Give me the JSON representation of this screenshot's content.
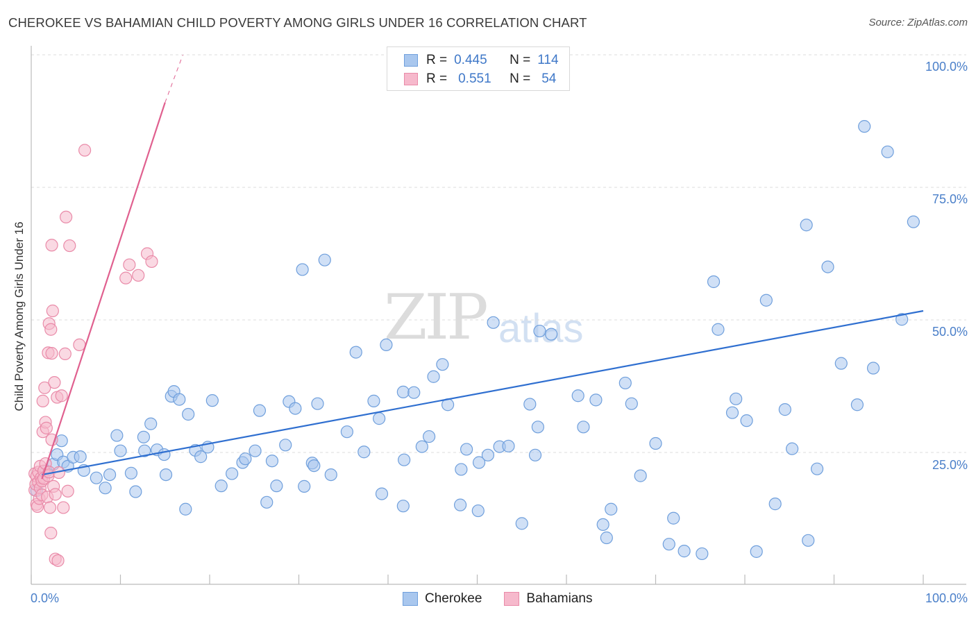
{
  "header": {
    "title": "CHEROKEE VS BAHAMIAN CHILD POVERTY AMONG GIRLS UNDER 16 CORRELATION CHART",
    "source": "Source: ZipAtlas.com"
  },
  "watermark": {
    "zip": "ZIP",
    "atlas": "atlas"
  },
  "legend": {
    "rows": [
      {
        "r_label": "R =",
        "r_value": "0.445",
        "n_label": "N =",
        "n_value": "114"
      },
      {
        "r_label": "R =",
        "r_value": "0.551",
        "n_label": "N =",
        "n_value": "54"
      }
    ]
  },
  "bottom_legend": {
    "a": "Cherokee",
    "b": "Bahamians"
  },
  "colors": {
    "cherokee_fill": "#a9c7ee",
    "cherokee_stroke": "#6f9fdc",
    "cherokee_line": "#2f6fd0",
    "bahamian_fill": "#f6b9cc",
    "bahamian_stroke": "#e98aa8",
    "bahamian_line": "#e0608f",
    "tick_label": "#4a7fc9",
    "grid": "#dcdcdc"
  },
  "chart_data": {
    "type": "scatter",
    "title": "CHEROKEE VS BAHAMIAN CHILD POVERTY AMONG GIRLS UNDER 16 CORRELATION CHART",
    "ylabel": "Child Poverty Among Girls Under 16",
    "xlabel": "",
    "xlim": [
      0,
      100
    ],
    "ylim": [
      0,
      100
    ],
    "x_tick_labels": [
      "0.0%",
      "100.0%"
    ],
    "y_tick_labels": [
      "25.0%",
      "50.0%",
      "75.0%",
      "100.0%"
    ],
    "y_ticks": [
      25,
      50,
      75,
      100
    ],
    "grid": true,
    "legend_position": "top-center",
    "series": [
      {
        "name": "Cherokee",
        "R": 0.445,
        "N": 114,
        "trend": {
          "x": [
            1.2,
            100
          ],
          "y": [
            20.8,
            51.7
          ]
        },
        "points": [
          [
            0.6,
            17.8
          ],
          [
            1.7,
            21.5
          ],
          [
            2.5,
            22.8
          ],
          [
            2.9,
            24.6
          ],
          [
            3.4,
            27.2
          ],
          [
            3.6,
            23.2
          ],
          [
            4.1,
            22.4
          ],
          [
            4.7,
            24.1
          ],
          [
            5.5,
            24.2
          ],
          [
            5.9,
            21.6
          ],
          [
            7.3,
            20.2
          ],
          [
            8.3,
            18.3
          ],
          [
            8.8,
            20.8
          ],
          [
            9.6,
            28.2
          ],
          [
            10.0,
            25.3
          ],
          [
            11.2,
            21.1
          ],
          [
            11.7,
            17.6
          ],
          [
            12.6,
            27.9
          ],
          [
            12.7,
            25.3
          ],
          [
            13.4,
            30.4
          ],
          [
            14.1,
            25.5
          ],
          [
            14.9,
            24.6
          ],
          [
            15.1,
            20.8
          ],
          [
            15.7,
            35.6
          ],
          [
            16.0,
            36.5
          ],
          [
            16.6,
            35.0
          ],
          [
            17.3,
            14.3
          ],
          [
            17.6,
            32.2
          ],
          [
            18.4,
            25.4
          ],
          [
            19.0,
            24.2
          ],
          [
            19.8,
            26.0
          ],
          [
            20.3,
            34.8
          ],
          [
            21.3,
            18.7
          ],
          [
            22.5,
            21.0
          ],
          [
            23.7,
            23.1
          ],
          [
            24.0,
            23.8
          ],
          [
            25.1,
            25.3
          ],
          [
            25.6,
            32.9
          ],
          [
            26.4,
            15.6
          ],
          [
            27.0,
            23.4
          ],
          [
            27.5,
            18.7
          ],
          [
            28.5,
            26.4
          ],
          [
            28.9,
            34.6
          ],
          [
            29.6,
            33.3
          ],
          [
            30.4,
            59.5
          ],
          [
            30.6,
            18.6
          ],
          [
            31.5,
            23.0
          ],
          [
            31.7,
            22.5
          ],
          [
            32.1,
            34.2
          ],
          [
            32.9,
            61.3
          ],
          [
            33.6,
            20.8
          ],
          [
            35.4,
            28.9
          ],
          [
            36.4,
            43.9
          ],
          [
            37.3,
            25.1
          ],
          [
            38.4,
            34.7
          ],
          [
            39.0,
            31.4
          ],
          [
            39.3,
            17.2
          ],
          [
            39.8,
            45.3
          ],
          [
            41.7,
            36.4
          ],
          [
            41.7,
            14.9
          ],
          [
            41.8,
            23.6
          ],
          [
            42.9,
            36.3
          ],
          [
            43.8,
            26.1
          ],
          [
            44.6,
            28.0
          ],
          [
            45.1,
            39.3
          ],
          [
            46.1,
            41.6
          ],
          [
            46.7,
            34.0
          ],
          [
            48.1,
            15.1
          ],
          [
            48.2,
            21.8
          ],
          [
            48.8,
            25.6
          ],
          [
            50.1,
            14.0
          ],
          [
            50.2,
            23.1
          ],
          [
            51.2,
            24.5
          ],
          [
            51.8,
            49.5
          ],
          [
            52.5,
            26.1
          ],
          [
            53.5,
            26.2
          ],
          [
            55.0,
            11.6
          ],
          [
            55.9,
            34.1
          ],
          [
            56.5,
            24.5
          ],
          [
            56.8,
            29.8
          ],
          [
            57.0,
            47.9
          ],
          [
            58.3,
            47.3
          ],
          [
            61.3,
            35.7
          ],
          [
            61.9,
            29.8
          ],
          [
            63.3,
            34.9
          ],
          [
            64.1,
            11.4
          ],
          [
            64.5,
            8.9
          ],
          [
            65.0,
            14.3
          ],
          [
            66.6,
            38.1
          ],
          [
            67.3,
            34.2
          ],
          [
            68.3,
            20.6
          ],
          [
            70.0,
            26.7
          ],
          [
            71.5,
            7.7
          ],
          [
            72.0,
            12.6
          ],
          [
            73.2,
            6.4
          ],
          [
            75.2,
            5.9
          ],
          [
            76.5,
            57.2
          ],
          [
            77.0,
            48.2
          ],
          [
            78.6,
            32.5
          ],
          [
            79.0,
            35.1
          ],
          [
            80.2,
            31.0
          ],
          [
            81.3,
            6.3
          ],
          [
            82.4,
            53.7
          ],
          [
            83.4,
            15.3
          ],
          [
            84.5,
            33.1
          ],
          [
            85.3,
            25.7
          ],
          [
            86.9,
            67.9
          ],
          [
            87.1,
            8.4
          ],
          [
            88.1,
            21.9
          ],
          [
            89.3,
            60.0
          ],
          [
            90.8,
            41.8
          ],
          [
            92.6,
            34.0
          ],
          [
            93.4,
            86.5
          ],
          [
            94.4,
            40.9
          ],
          [
            96.0,
            81.7
          ],
          [
            97.6,
            50.1
          ],
          [
            98.9,
            68.5
          ]
        ]
      },
      {
        "name": "Bahamians",
        "R": 0.551,
        "N": 54,
        "trend": {
          "x": [
            1.2,
            15.0
          ],
          "y": [
            20.0,
            91.0
          ]
        },
        "trend_dashed": {
          "x": [
            15.0,
            17.0
          ],
          "y": [
            91.0,
            100.0
          ]
        },
        "points": [
          [
            0.4,
            17.9
          ],
          [
            0.4,
            21.0
          ],
          [
            0.5,
            19.0
          ],
          [
            0.6,
            15.2
          ],
          [
            0.6,
            20.5
          ],
          [
            0.7,
            14.8
          ],
          [
            0.8,
            21.3
          ],
          [
            0.8,
            19.4
          ],
          [
            0.9,
            16.3
          ],
          [
            1.0,
            18.3
          ],
          [
            1.0,
            22.4
          ],
          [
            1.1,
            20.2
          ],
          [
            1.2,
            17.0
          ],
          [
            1.2,
            19.6
          ],
          [
            1.3,
            28.9
          ],
          [
            1.3,
            34.7
          ],
          [
            1.4,
            21.5
          ],
          [
            1.4,
            20.1
          ],
          [
            1.5,
            37.2
          ],
          [
            1.6,
            30.7
          ],
          [
            1.6,
            22.9
          ],
          [
            1.7,
            29.6
          ],
          [
            1.8,
            16.6
          ],
          [
            1.9,
            20.6
          ],
          [
            1.9,
            43.8
          ],
          [
            2.0,
            49.3
          ],
          [
            2.0,
            21.3
          ],
          [
            2.1,
            14.6
          ],
          [
            2.2,
            9.8
          ],
          [
            2.2,
            48.2
          ],
          [
            2.3,
            64.1
          ],
          [
            2.3,
            43.7
          ],
          [
            2.3,
            27.4
          ],
          [
            2.4,
            51.7
          ],
          [
            2.5,
            18.6
          ],
          [
            2.6,
            38.2
          ],
          [
            2.7,
            17.1
          ],
          [
            2.7,
            4.9
          ],
          [
            2.9,
            35.4
          ],
          [
            3.0,
            4.6
          ],
          [
            3.1,
            21.2
          ],
          [
            3.4,
            35.7
          ],
          [
            3.6,
            14.6
          ],
          [
            3.8,
            43.6
          ],
          [
            3.9,
            69.4
          ],
          [
            4.1,
            17.7
          ],
          [
            4.3,
            64.0
          ],
          [
            5.4,
            45.3
          ],
          [
            6.0,
            82.0
          ],
          [
            10.6,
            57.9
          ],
          [
            11.0,
            60.4
          ],
          [
            12.0,
            58.4
          ],
          [
            13.0,
            62.5
          ],
          [
            13.5,
            61.0
          ]
        ]
      }
    ]
  }
}
